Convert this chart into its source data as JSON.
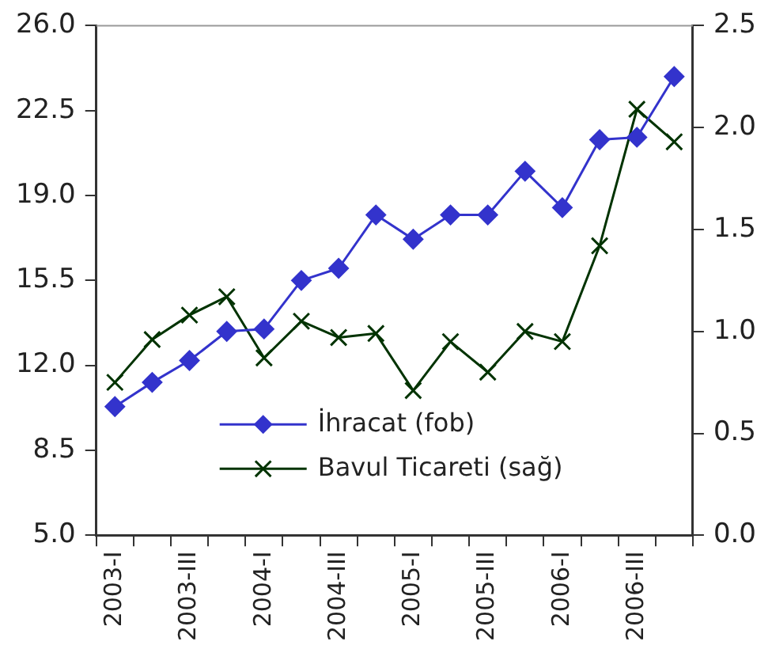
{
  "chart_data": {
    "type": "line",
    "categories": [
      "2003-I",
      null,
      "2003-III",
      null,
      "2004-I",
      null,
      "2004-III",
      null,
      "2005-I",
      null,
      "2005-III",
      null,
      "2006-I",
      null,
      "2006-III",
      null
    ],
    "series": [
      {
        "name": "İhracat (fob)",
        "color": "#3333cc",
        "marker": "diamond",
        "values": [
          10.3,
          11.3,
          12.2,
          13.4,
          13.5,
          15.5,
          16.0,
          18.2,
          17.2,
          18.2,
          18.2,
          20.0,
          18.5,
          21.3,
          21.4,
          23.9
        ]
      },
      {
        "name": "Bavul Ticareti (sağ)",
        "color": "#003300",
        "marker": "cross",
        "axis": "y2",
        "values": [
          0.75,
          0.96,
          1.08,
          1.17,
          0.87,
          1.05,
          0.97,
          0.99,
          0.71,
          0.95,
          0.8,
          1.0,
          0.95,
          1.42,
          2.09,
          1.93
        ]
      }
    ],
    "ylim": [
      5,
      26
    ],
    "yticks": [
      {
        "value": 5,
        "label": "5.0"
      },
      {
        "value": 8.5,
        "label": "8.5"
      },
      {
        "value": 12,
        "label": "12.0"
      },
      {
        "value": 15.5,
        "label": "15.5"
      },
      {
        "value": 19,
        "label": "19.0"
      },
      {
        "value": 22.5,
        "label": "22.5"
      },
      {
        "value": 26,
        "label": "26.0"
      }
    ],
    "y2lim": [
      0,
      2.5
    ],
    "y2ticks": [
      {
        "value": 0,
        "label": "0.0"
      },
      {
        "value": 0.5,
        "label": "0.5"
      },
      {
        "value": 1,
        "label": "1.0"
      },
      {
        "value": 1.5,
        "label": "1.5"
      },
      {
        "value": 2,
        "label": "2.0"
      },
      {
        "value": 2.5,
        "label": "2.5"
      }
    ],
    "grid": false,
    "legend": "bottom",
    "line_style": "solid"
  }
}
